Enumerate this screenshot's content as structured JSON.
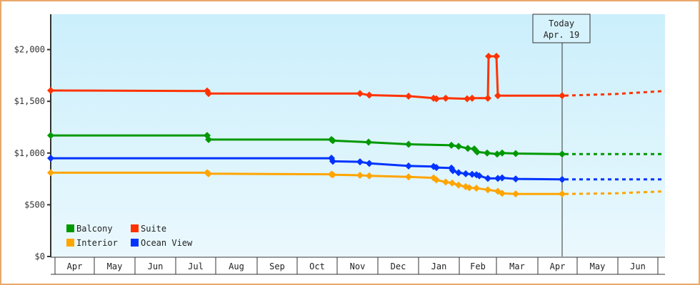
{
  "chart_data": {
    "type": "line",
    "title": "",
    "xlabel": "",
    "ylabel": "",
    "ylim": [
      0,
      2350
    ],
    "y_ticks": [
      {
        "value": 0,
        "label": "$0"
      },
      {
        "value": 500,
        "label": "$500"
      },
      {
        "value": 1000,
        "label": "$1,000"
      },
      {
        "value": 1500,
        "label": "$1,500"
      },
      {
        "value": 2000,
        "label": "$2,000"
      }
    ],
    "x_ticks": [
      "Apr",
      "May",
      "Jun",
      "Jul",
      "Aug",
      "Sep",
      "Oct",
      "Nov",
      "Dec",
      "Jan",
      "Feb",
      "Mar",
      "Apr",
      "May",
      "Jun"
    ],
    "grid": false,
    "legend_position": "bottom-left inside",
    "today_marker": {
      "line1": "Today",
      "line2": "Apr. 19"
    },
    "series": [
      {
        "name": "Suite",
        "color": "#ff3300",
        "points": [
          [
            71,
            1605
          ],
          [
            290,
            1600
          ],
          [
            292,
            1575
          ],
          [
            504,
            1575
          ],
          [
            517,
            1560
          ],
          [
            572,
            1550
          ],
          [
            607,
            1530
          ],
          [
            611,
            1525
          ],
          [
            624,
            1530
          ],
          [
            654,
            1525
          ],
          [
            661,
            1530
          ],
          [
            683,
            1530
          ],
          [
            684,
            1935
          ],
          [
            695,
            1935
          ],
          [
            697,
            1555
          ],
          [
            787,
            1555
          ]
        ],
        "forecast": [
          [
            787,
            1555
          ],
          [
            860,
            1570
          ],
          [
            931,
            1600
          ]
        ]
      },
      {
        "name": "Balcony",
        "color": "#009900",
        "points": [
          [
            71,
            1170
          ],
          [
            290,
            1170
          ],
          [
            292,
            1130
          ],
          [
            464,
            1130
          ],
          [
            466,
            1120
          ],
          [
            516,
            1105
          ],
          [
            572,
            1085
          ],
          [
            632,
            1075
          ],
          [
            642,
            1065
          ],
          [
            655,
            1045
          ],
          [
            664,
            1040
          ],
          [
            668,
            1010
          ],
          [
            682,
            1000
          ],
          [
            696,
            990
          ],
          [
            703,
            1000
          ],
          [
            722,
            995
          ],
          [
            787,
            990
          ]
        ],
        "forecast": [
          [
            787,
            990
          ],
          [
            931,
            990
          ]
        ]
      },
      {
        "name": "Ocean View",
        "color": "#0033ff",
        "points": [
          [
            71,
            950
          ],
          [
            464,
            950
          ],
          [
            466,
            920
          ],
          [
            504,
            915
          ],
          [
            517,
            900
          ],
          [
            572,
            875
          ],
          [
            607,
            870
          ],
          [
            611,
            860
          ],
          [
            632,
            855
          ],
          [
            634,
            830
          ],
          [
            642,
            810
          ],
          [
            652,
            800
          ],
          [
            661,
            795
          ],
          [
            667,
            790
          ],
          [
            671,
            780
          ],
          [
            683,
            755
          ],
          [
            697,
            755
          ],
          [
            703,
            760
          ],
          [
            722,
            750
          ],
          [
            787,
            745
          ]
        ],
        "forecast": [
          [
            787,
            745
          ],
          [
            931,
            745
          ]
        ]
      },
      {
        "name": "Interior",
        "color": "#ffa500",
        "points": [
          [
            71,
            810
          ],
          [
            290,
            810
          ],
          [
            292,
            800
          ],
          [
            464,
            795
          ],
          [
            466,
            790
          ],
          [
            504,
            785
          ],
          [
            517,
            780
          ],
          [
            572,
            770
          ],
          [
            607,
            760
          ],
          [
            611,
            740
          ],
          [
            624,
            720
          ],
          [
            633,
            710
          ],
          [
            642,
            690
          ],
          [
            652,
            675
          ],
          [
            657,
            665
          ],
          [
            667,
            660
          ],
          [
            683,
            645
          ],
          [
            697,
            630
          ],
          [
            703,
            610
          ],
          [
            722,
            605
          ],
          [
            787,
            605
          ]
        ],
        "forecast": [
          [
            787,
            605
          ],
          [
            860,
            610
          ],
          [
            931,
            630
          ]
        ]
      }
    ],
    "legend": [
      {
        "name": "Balcony",
        "color": "#009900"
      },
      {
        "name": "Suite",
        "color": "#ff3300"
      },
      {
        "name": "Interior",
        "color": "#ffa500"
      },
      {
        "name": "Ocean View",
        "color": "#0033ff"
      }
    ]
  }
}
